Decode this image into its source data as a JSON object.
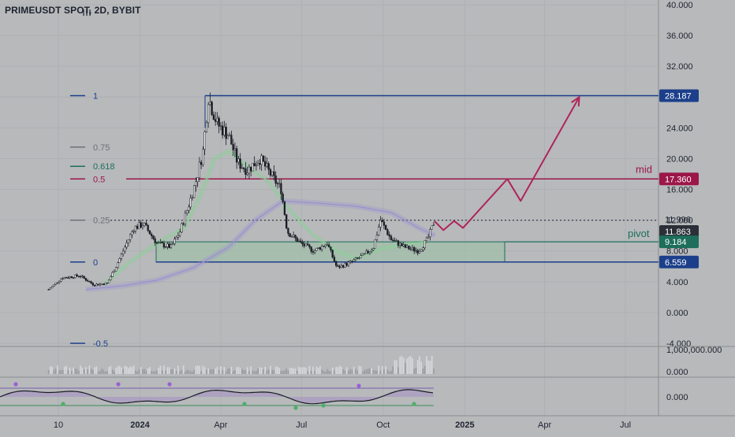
{
  "header": {
    "title": "PRIMEUSDT SPOT, 2D, BYBIT"
  },
  "colors": {
    "background": "#b7b9bb",
    "grid": "#aeb0b3",
    "candle": "#1a1d24",
    "fib_line": "#1b3f8a",
    "mid_line": "#9b1747",
    "pivot_zone_border": "#1d6e5b",
    "pivot_zone_fill": "#9fbfa8",
    "projection": "#b0245a",
    "ma_green": "#8fcf9a",
    "ma_purple": "#9b8fd0",
    "osc_line": "#1a1d24",
    "osc_fill": "#9b77c9",
    "osc_dot_green": "#4caf6a",
    "osc_dot_purple": "#9b5fd6"
  },
  "icons": {
    "menu_glyph": "triple-bar-icon"
  },
  "chart_data": {
    "type": "candlestick",
    "title": "PRIMEUSDT SPOT, 2D, BYBIT",
    "y_scale": "log",
    "y_ticks": [
      "40.000",
      "36.000",
      "32.000",
      "28.000",
      "24.000",
      "20.000",
      "16.000",
      "12.000",
      "8.000",
      "4.000",
      "0.000",
      "-4.000"
    ],
    "x_ticks": [
      "10",
      "2024",
      "Apr",
      "Jul",
      "Oct",
      "2025",
      "Apr",
      "Jul"
    ],
    "fib_levels": [
      {
        "label": "1",
        "value": 28.187
      },
      {
        "label": "0.75",
        "value": 21.5
      },
      {
        "label": "0.618",
        "value": 19.0
      },
      {
        "label": "0.5",
        "value": 17.36
      },
      {
        "label": "0.25",
        "value": 11.996
      },
      {
        "label": "0",
        "value": 6.559
      },
      {
        "label": "-0.5",
        "value": -4.0
      }
    ],
    "price_labels": [
      {
        "text": "28.187",
        "value": 28.187,
        "color": "#1b3f8a"
      },
      {
        "text": "17.360",
        "value": 17.36,
        "color": "#9b1747"
      },
      {
        "text": "11.996",
        "value": 11.996,
        "color": "none"
      },
      {
        "text": "11.863",
        "value": 11.863,
        "color": "#2a2f38"
      },
      {
        "text": "9.184",
        "value": 9.184,
        "color": "#1d6e5b"
      },
      {
        "text": "6.559",
        "value": 6.559,
        "color": "#1b3f8a"
      }
    ],
    "annotations": [
      "mid",
      "pivot"
    ],
    "pivot_zone": {
      "low": 6.559,
      "high": 9.184
    },
    "price_path": [
      [
        "2023-09-20",
        3.0
      ],
      [
        "2023-10-05",
        4.5
      ],
      [
        "2023-10-25",
        4.8
      ],
      [
        "2023-11-10",
        3.6
      ],
      [
        "2023-11-25",
        3.8
      ],
      [
        "2023-12-05",
        6.0
      ],
      [
        "2023-12-15",
        8.5
      ],
      [
        "2023-12-25",
        11.0
      ],
      [
        "2024-01-05",
        11.5
      ],
      [
        "2024-01-20",
        9.0
      ],
      [
        "2024-02-05",
        8.5
      ],
      [
        "2024-02-15",
        10.5
      ],
      [
        "2024-02-25",
        14.0
      ],
      [
        "2024-03-05",
        17.5
      ],
      [
        "2024-03-12",
        21.0
      ],
      [
        "2024-03-18",
        28.0
      ],
      [
        "2024-03-28",
        24.5
      ],
      [
        "2024-04-10",
        23.0
      ],
      [
        "2024-04-20",
        19.5
      ],
      [
        "2024-05-01",
        18.5
      ],
      [
        "2024-05-15",
        20.0
      ],
      [
        "2024-05-30",
        17.5
      ],
      [
        "2024-06-08",
        16.0
      ],
      [
        "2024-06-15",
        10.5
      ],
      [
        "2024-06-30",
        9.0
      ],
      [
        "2024-07-15",
        8.0
      ],
      [
        "2024-07-30",
        9.0
      ],
      [
        "2024-08-10",
        5.8
      ],
      [
        "2024-08-25",
        6.5
      ],
      [
        "2024-09-10",
        7.5
      ],
      [
        "2024-09-20",
        8.5
      ],
      [
        "2024-09-28",
        12.0
      ],
      [
        "2024-10-10",
        9.5
      ],
      [
        "2024-10-25",
        8.5
      ],
      [
        "2024-11-10",
        8.0
      ],
      [
        "2024-11-20",
        9.5
      ],
      [
        "2024-11-28",
        11.9
      ]
    ],
    "projection_path": [
      [
        "2024-11-28",
        11.863
      ],
      [
        "2024-12-08",
        10.7
      ],
      [
        "2024-12-20",
        11.9
      ],
      [
        "2024-12-30",
        11.0
      ],
      [
        "2025-02-18",
        17.36
      ],
      [
        "2025-03-05",
        14.5
      ],
      [
        "2025-05-10",
        28.0
      ]
    ],
    "volume_panel": {
      "y_ticks": [
        "1,000,000.000",
        "0.000"
      ]
    },
    "oscillator_panel": {
      "y_ticks": [
        "0.000"
      ]
    }
  }
}
